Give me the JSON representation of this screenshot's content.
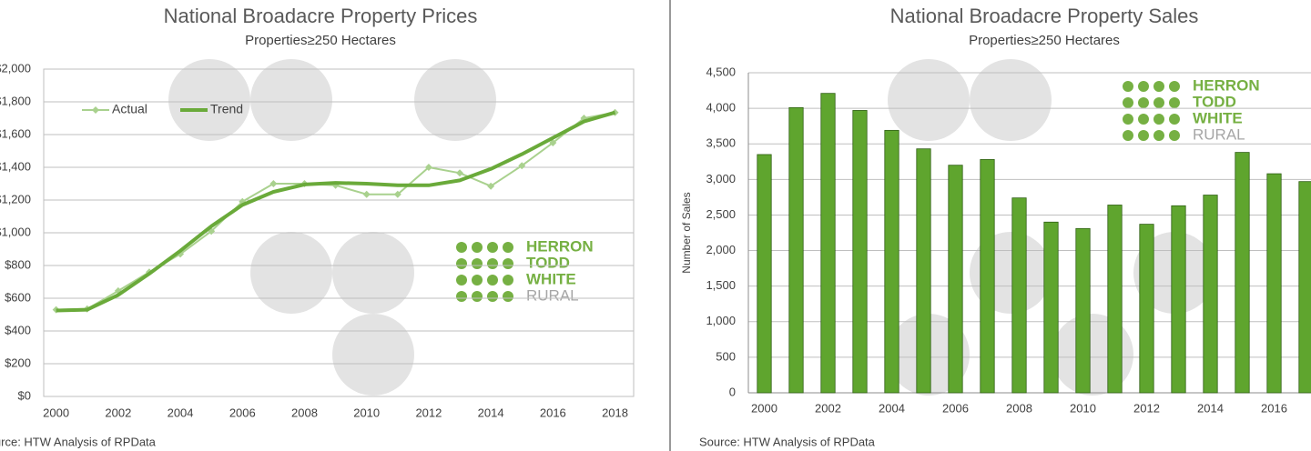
{
  "chart_data": [
    {
      "type": "line",
      "title": "National Broadacre Property Prices",
      "subtitle": "Properties≥250 Hectares",
      "source": "Source: HTW Analysis of RPData",
      "logo": [
        "HERRON",
        "TODD",
        "WHITE",
        "RURAL"
      ],
      "x": [
        2000,
        2001,
        2002,
        2003,
        2004,
        2005,
        2006,
        2007,
        2008,
        2009,
        2010,
        2011,
        2012,
        2013,
        2014,
        2015,
        2016,
        2017,
        2018
      ],
      "series": [
        {
          "name": "Actual",
          "color": "#a9d18e",
          "marker": "diamond",
          "values": [
            530,
            535,
            645,
            760,
            870,
            1010,
            1190,
            1300,
            1300,
            1290,
            1235,
            1235,
            1400,
            1365,
            1285,
            1410,
            1550,
            1700,
            1735
          ]
        },
        {
          "name": "Trend",
          "color": "#6aaa3a",
          "values": [
            525,
            530,
            620,
            750,
            890,
            1040,
            1170,
            1250,
            1295,
            1305,
            1300,
            1290,
            1290,
            1320,
            1390,
            1480,
            1580,
            1680,
            1735
          ]
        }
      ],
      "xlim": [
        1999.6,
        2018.6
      ],
      "xticks": [
        2000,
        2002,
        2004,
        2006,
        2008,
        2010,
        2012,
        2014,
        2016,
        2018
      ],
      "ylim": [
        0,
        2000
      ],
      "yticks": [
        {
          "value": 0,
          "label": "$0"
        },
        {
          "value": 200,
          "label": "$200"
        },
        {
          "value": 400,
          "label": "$400"
        },
        {
          "value": 600,
          "label": "$600"
        },
        {
          "value": 800,
          "label": "$800"
        },
        {
          "value": 1000,
          "label": "$1,000"
        },
        {
          "value": 1200,
          "label": "$1,200"
        },
        {
          "value": 1400,
          "label": "$1,400"
        },
        {
          "value": 1600,
          "label": "$1,600"
        },
        {
          "value": 1800,
          "label": "$1,800"
        },
        {
          "value": 2000,
          "label": "$2,000"
        }
      ],
      "grid": true,
      "legend": "upper left"
    },
    {
      "type": "bar",
      "title": "National Broadacre Property Sales",
      "subtitle": "Properties≥250 Hectares",
      "source": "Source: HTW Analysis of RPData",
      "logo": [
        "HERRON",
        "TODD",
        "WHITE",
        "RURAL"
      ],
      "y_label": "Number of Sales",
      "categories": [
        "2000",
        null,
        "2002",
        null,
        "2004",
        null,
        "2006",
        null,
        "2008",
        null,
        "2010",
        null,
        "2012",
        null,
        "2014",
        null,
        "2016",
        null
      ],
      "values": [
        3350,
        4010,
        4210,
        3970,
        3690,
        3430,
        3200,
        3280,
        2740,
        2400,
        2310,
        2640,
        2370,
        2630,
        2780,
        3380,
        3080,
        2970
      ],
      "color": "#5fa52e",
      "ylim": [
        0,
        4500
      ],
      "yticks": [
        0,
        500,
        {
          "value": 1000,
          "label": "1,000"
        },
        {
          "value": 1500,
          "label": "1,500"
        },
        {
          "value": 2000,
          "label": "2,000"
        },
        {
          "value": 2500,
          "label": "2,500"
        },
        {
          "value": 3000,
          "label": "3,000"
        },
        {
          "value": 3500,
          "label": "3,500"
        },
        {
          "value": 4000,
          "label": "4,000"
        },
        {
          "value": 4500,
          "label": "4,500"
        }
      ],
      "grid": true
    }
  ]
}
